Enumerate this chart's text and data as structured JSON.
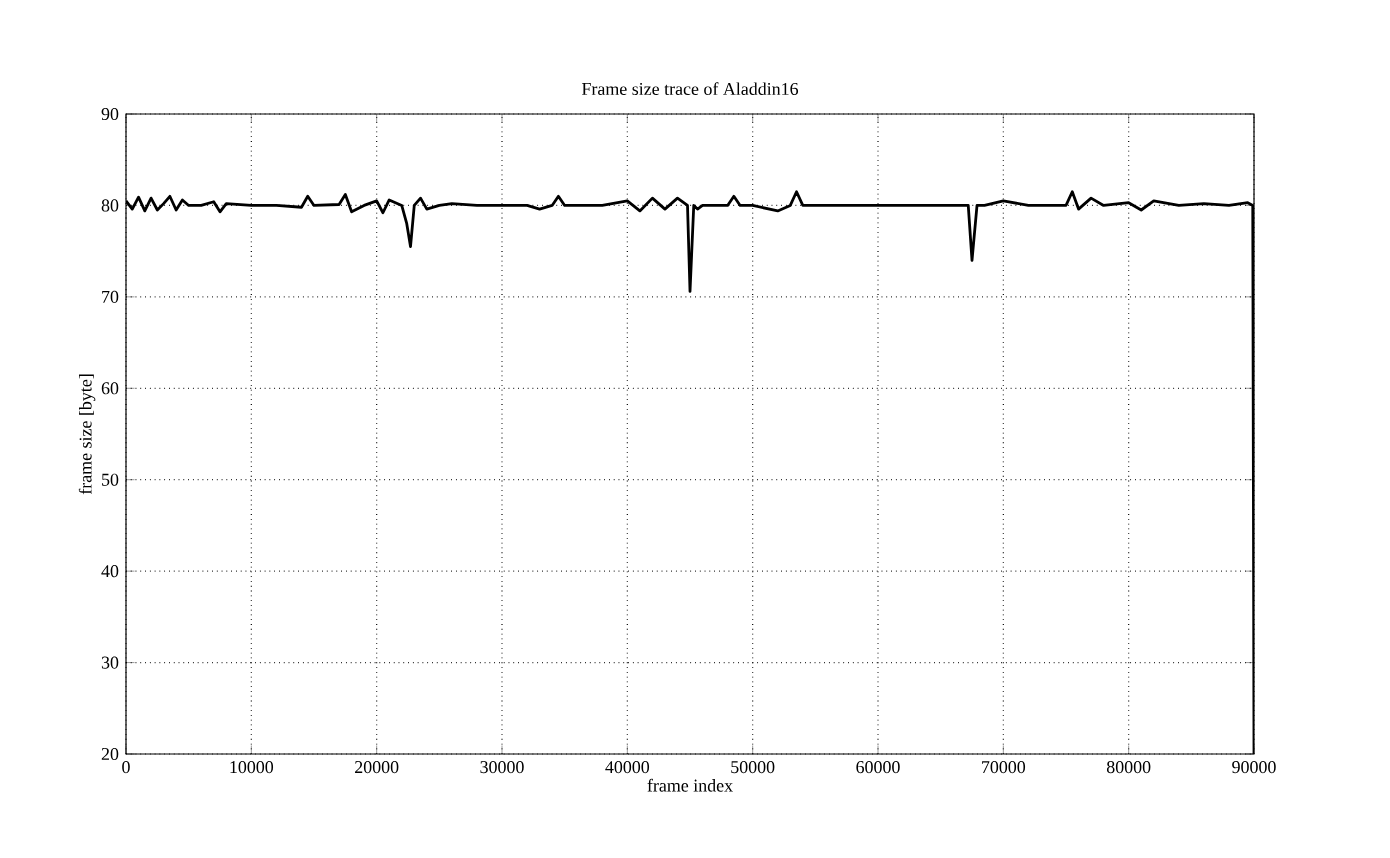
{
  "chart_data": {
    "type": "line",
    "title": "Frame size trace of Aladdin16",
    "xlabel": "frame index",
    "ylabel": "frame size [byte]",
    "x": [
      0,
      500,
      1000,
      1500,
      2000,
      2500,
      3000,
      3500,
      4000,
      4500,
      5000,
      6000,
      7000,
      7500,
      8000,
      10000,
      12000,
      14000,
      14500,
      15000,
      17000,
      17500,
      18000,
      19000,
      20000,
      20500,
      21000,
      22000,
      22400,
      22700,
      23000,
      23500,
      24000,
      25000,
      26000,
      28000,
      30000,
      32000,
      33000,
      34000,
      34500,
      35000,
      38000,
      40000,
      41000,
      42000,
      43000,
      44000,
      44800,
      45000,
      45300,
      45600,
      46000,
      48000,
      48500,
      49000,
      50000,
      52000,
      53000,
      53500,
      54000,
      58000,
      60000,
      62000,
      64000,
      66000,
      67200,
      67500,
      67900,
      68500,
      70000,
      72000,
      74000,
      75000,
      75500,
      76000,
      77000,
      78000,
      80000,
      81000,
      82000,
      84000,
      86000,
      88000,
      89500,
      89900,
      90000
    ],
    "series": [
      {
        "color": "#000000",
        "values": [
          80.5,
          79.6,
          80.9,
          79.4,
          80.8,
          79.5,
          80.2,
          81.0,
          79.5,
          80.6,
          80.0,
          80.0,
          80.4,
          79.3,
          80.2,
          80.0,
          80.0,
          79.8,
          81.0,
          80.0,
          80.1,
          81.2,
          79.3,
          80.0,
          80.5,
          79.2,
          80.6,
          80.0,
          78.0,
          75.5,
          80.0,
          80.8,
          79.6,
          80.0,
          80.2,
          80.0,
          80.0,
          80.0,
          79.6,
          80.0,
          81.0,
          80.0,
          80.0,
          80.5,
          79.4,
          80.8,
          79.6,
          80.8,
          80.0,
          70.6,
          80.0,
          79.6,
          80.0,
          80.0,
          81.0,
          80.0,
          80.0,
          79.4,
          80.0,
          81.5,
          80.0,
          80.0,
          80.0,
          80.0,
          80.0,
          80.0,
          80.0,
          74.0,
          80.0,
          80.0,
          80.5,
          80.0,
          80.0,
          80.0,
          81.5,
          79.6,
          80.8,
          80.0,
          80.3,
          79.5,
          80.5,
          80.0,
          80.2,
          80.0,
          80.3,
          80.0,
          20.0
        ]
      }
    ],
    "xlim": [
      0,
      90000
    ],
    "ylim": [
      20,
      90
    ],
    "xticks": [
      0,
      10000,
      20000,
      30000,
      40000,
      50000,
      60000,
      70000,
      80000,
      90000
    ],
    "yticks": [
      20,
      30,
      40,
      50,
      60,
      70,
      80,
      90
    ],
    "grid": true,
    "marker": "none",
    "line_style": "solid"
  }
}
